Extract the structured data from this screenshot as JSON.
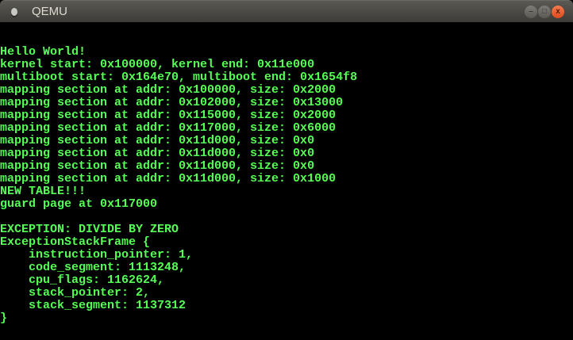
{
  "window": {
    "title": "QEMU",
    "controls": {
      "minimize": "–",
      "maximize": "□",
      "close": "x"
    }
  },
  "terminal": {
    "text_color": "#55ff55",
    "background": "#000000",
    "lines": [
      "Hello World!",
      "kernel start: 0x100000, kernel end: 0x11e000",
      "multiboot start: 0x164e70, multiboot end: 0x1654f8",
      "mapping section at addr: 0x100000, size: 0x2000",
      "mapping section at addr: 0x102000, size: 0x13000",
      "mapping section at addr: 0x115000, size: 0x2000",
      "mapping section at addr: 0x117000, size: 0x6000",
      "mapping section at addr: 0x11d000, size: 0x0",
      "mapping section at addr: 0x11d000, size: 0x0",
      "mapping section at addr: 0x11d000, size: 0x0",
      "mapping section at addr: 0x11d000, size: 0x1000",
      "NEW TABLE!!!",
      "guard page at 0x117000",
      "",
      "EXCEPTION: DIVIDE BY ZERO",
      "ExceptionStackFrame {",
      "    instruction_pointer: 1,",
      "    code_segment: 1113248,",
      "    cpu_flags: 1162624,",
      "    stack_pointer: 2,",
      "    stack_segment: 1137312",
      "}"
    ]
  }
}
